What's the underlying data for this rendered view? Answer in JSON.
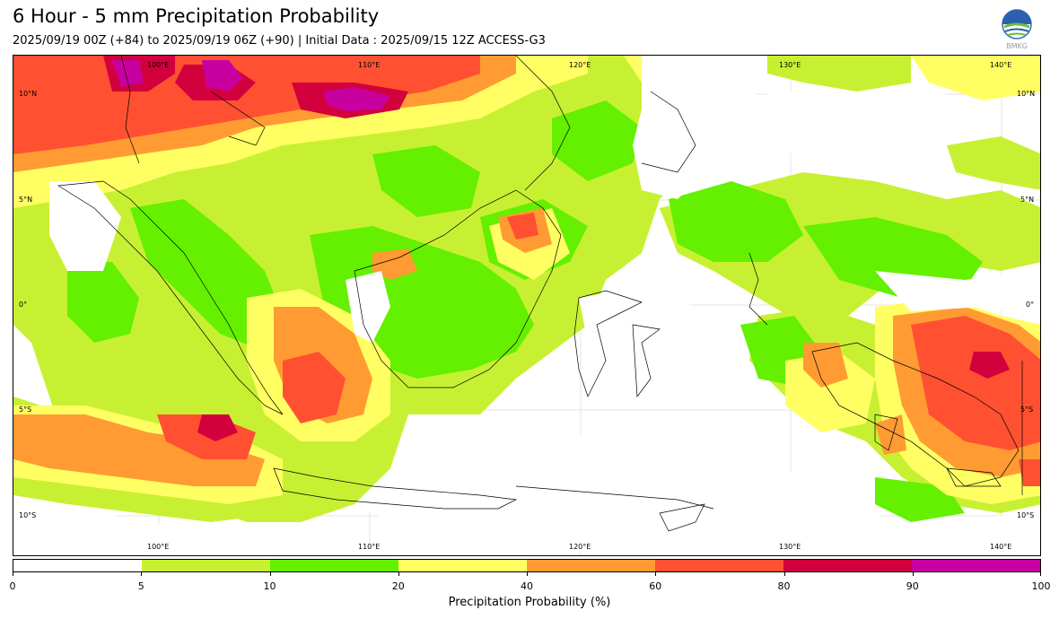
{
  "header": {
    "title": "6 Hour - 5 mm Precipitation Probability",
    "subtitle": "2025/09/19 00Z (+84) to 2025/09/19 06Z (+90) | Initial Data : 2025/09/15 12Z ACCESS-G3",
    "logo_text": "BMKG"
  },
  "map": {
    "lon_labels_top": [
      "100°E",
      "110°E",
      "120°E",
      "130°E",
      "140°E"
    ],
    "lon_labels_bottom": [
      "100°E",
      "110°E",
      "120°E",
      "130°E",
      "140°E"
    ],
    "lat_labels_left": [
      "10°N",
      "5°N",
      "0°",
      "5°S",
      "10°S"
    ],
    "lat_labels_right": [
      "10°N",
      "5°N",
      "0°",
      "5°S",
      "10°S"
    ]
  },
  "colorbar": {
    "label": "Precipitation Probability (%)",
    "ticks": [
      "0",
      "5",
      "10",
      "20",
      "40",
      "60",
      "80",
      "90",
      "100"
    ],
    "colors": [
      "#ffffff",
      "#c8f032",
      "#64f000",
      "#ffff64",
      "#ff9b32",
      "#ff5032",
      "#d2003c",
      "#c800a0"
    ]
  }
}
